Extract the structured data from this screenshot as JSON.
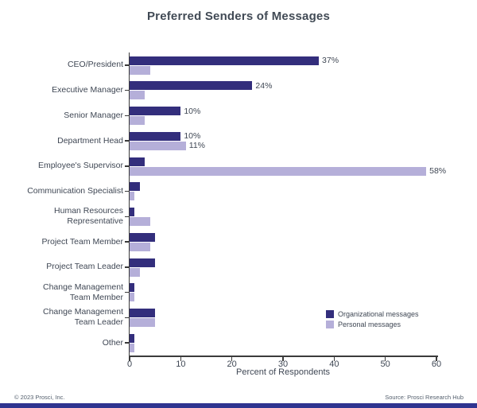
{
  "chart_data": {
    "type": "bar",
    "orientation": "horizontal",
    "title": "Preferred Senders of Messages",
    "xlabel": "Percent of Respondents",
    "xlim": [
      0,
      60
    ],
    "xticks": [
      "0",
      "10",
      "20",
      "30",
      "40",
      "50",
      "60"
    ],
    "grid": false,
    "legend_position": "lower-right",
    "categories": [
      "CEO/President",
      "Executive Manager",
      "Senior Manager",
      "Department Head",
      "Employee's Supervisor",
      "Communication Specialist",
      "Human Resources Representative",
      "Project Team Member",
      "Project Team Leader",
      "Change Management Team Member",
      "Change Management Team Leader",
      "Other"
    ],
    "category_lines": [
      [
        "CEO/President"
      ],
      [
        "Executive Manager"
      ],
      [
        "Senior Manager"
      ],
      [
        "Department Head"
      ],
      [
        "Employee's Supervisor"
      ],
      [
        "Communication Specialist"
      ],
      [
        "Human Resources",
        "Representative"
      ],
      [
        "Project Team Member"
      ],
      [
        "Project Team Leader"
      ],
      [
        "Change Management",
        "Team Member"
      ],
      [
        "Change Management",
        "Team Leader"
      ],
      [
        "Other"
      ]
    ],
    "series": [
      {
        "name": "Organizational messages",
        "color": "#332e7c",
        "values": [
          37,
          24,
          10,
          10,
          3,
          2,
          1,
          5,
          5,
          1,
          5,
          1
        ],
        "labels": [
          "37%",
          "24%",
          "10%",
          "10%",
          "",
          "",
          "",
          "",
          "",
          "",
          "",
          ""
        ]
      },
      {
        "name": "Personal messages",
        "color": "#b5afd9",
        "values": [
          4,
          3,
          3,
          11,
          58,
          1,
          4,
          4,
          2,
          1,
          5,
          1
        ],
        "labels": [
          "",
          "",
          "",
          "11%",
          "58%",
          "",
          "",
          "",
          "",
          "",
          "",
          ""
        ]
      }
    ]
  },
  "footer": {
    "copyright": "© 2023 Prosci, Inc.",
    "source": "Source: Prosci Research Hub"
  },
  "colors": {
    "organizational": "#332e7c",
    "personal": "#b5afd9",
    "text": "#3f4754",
    "axis": "#3b3b3b",
    "background": "#ffffff",
    "bottom_bar": "#2f3490"
  }
}
